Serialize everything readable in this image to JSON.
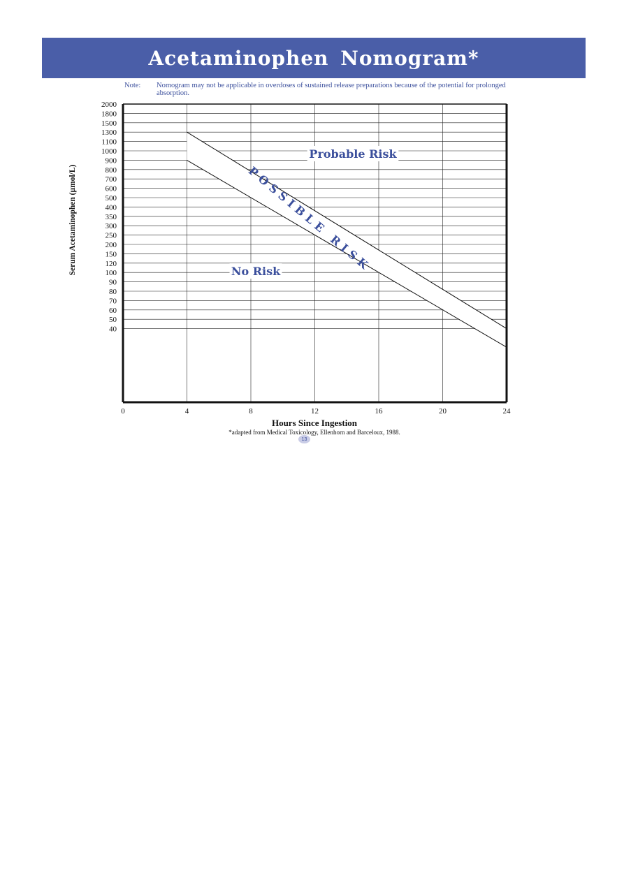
{
  "page": {
    "title": "Acetaminophen Nomogram*",
    "note_label": "Note:",
    "note_text": "Nomogram may not be applicable in overdoses of sustained release preparations because of the potential for prolonged absorption.",
    "footnote": "*adapted from Medical Toxicology, Ellenhorn and Barceloux, 1988.",
    "page_number": "13"
  },
  "colors": {
    "banner": "#4a5ea8",
    "accent_text": "#3b4f9c",
    "badge": "#c9cce6"
  },
  "chart_data": {
    "type": "line",
    "xlabel": "Hours Since Ingestion",
    "ylabel": "Serum Acetaminophen (µmol/L)",
    "x_ticks": [
      0,
      4,
      8,
      12,
      16,
      20,
      24
    ],
    "xlim": [
      0,
      24
    ],
    "y_tick_labels": [
      "2000",
      "1800",
      "1500",
      "1300",
      "1100",
      "1000",
      "900",
      "800",
      "700",
      "600",
      "500",
      "400",
      "350",
      "300",
      "250",
      "200",
      "150",
      "120",
      "100",
      "90",
      "80",
      "70",
      "60",
      "50",
      "40"
    ],
    "grid": true,
    "series": [
      {
        "name": "Upper line",
        "x": [
          4,
          24
        ],
        "y": [
          1300,
          40
        ]
      },
      {
        "name": "Lower line",
        "x": [
          4,
          24
        ],
        "y": [
          900,
          50
        ]
      }
    ],
    "region_labels": {
      "probable": "Probable Risk",
      "possible": "POSSIBLE RISK",
      "none": "No Risk"
    }
  }
}
